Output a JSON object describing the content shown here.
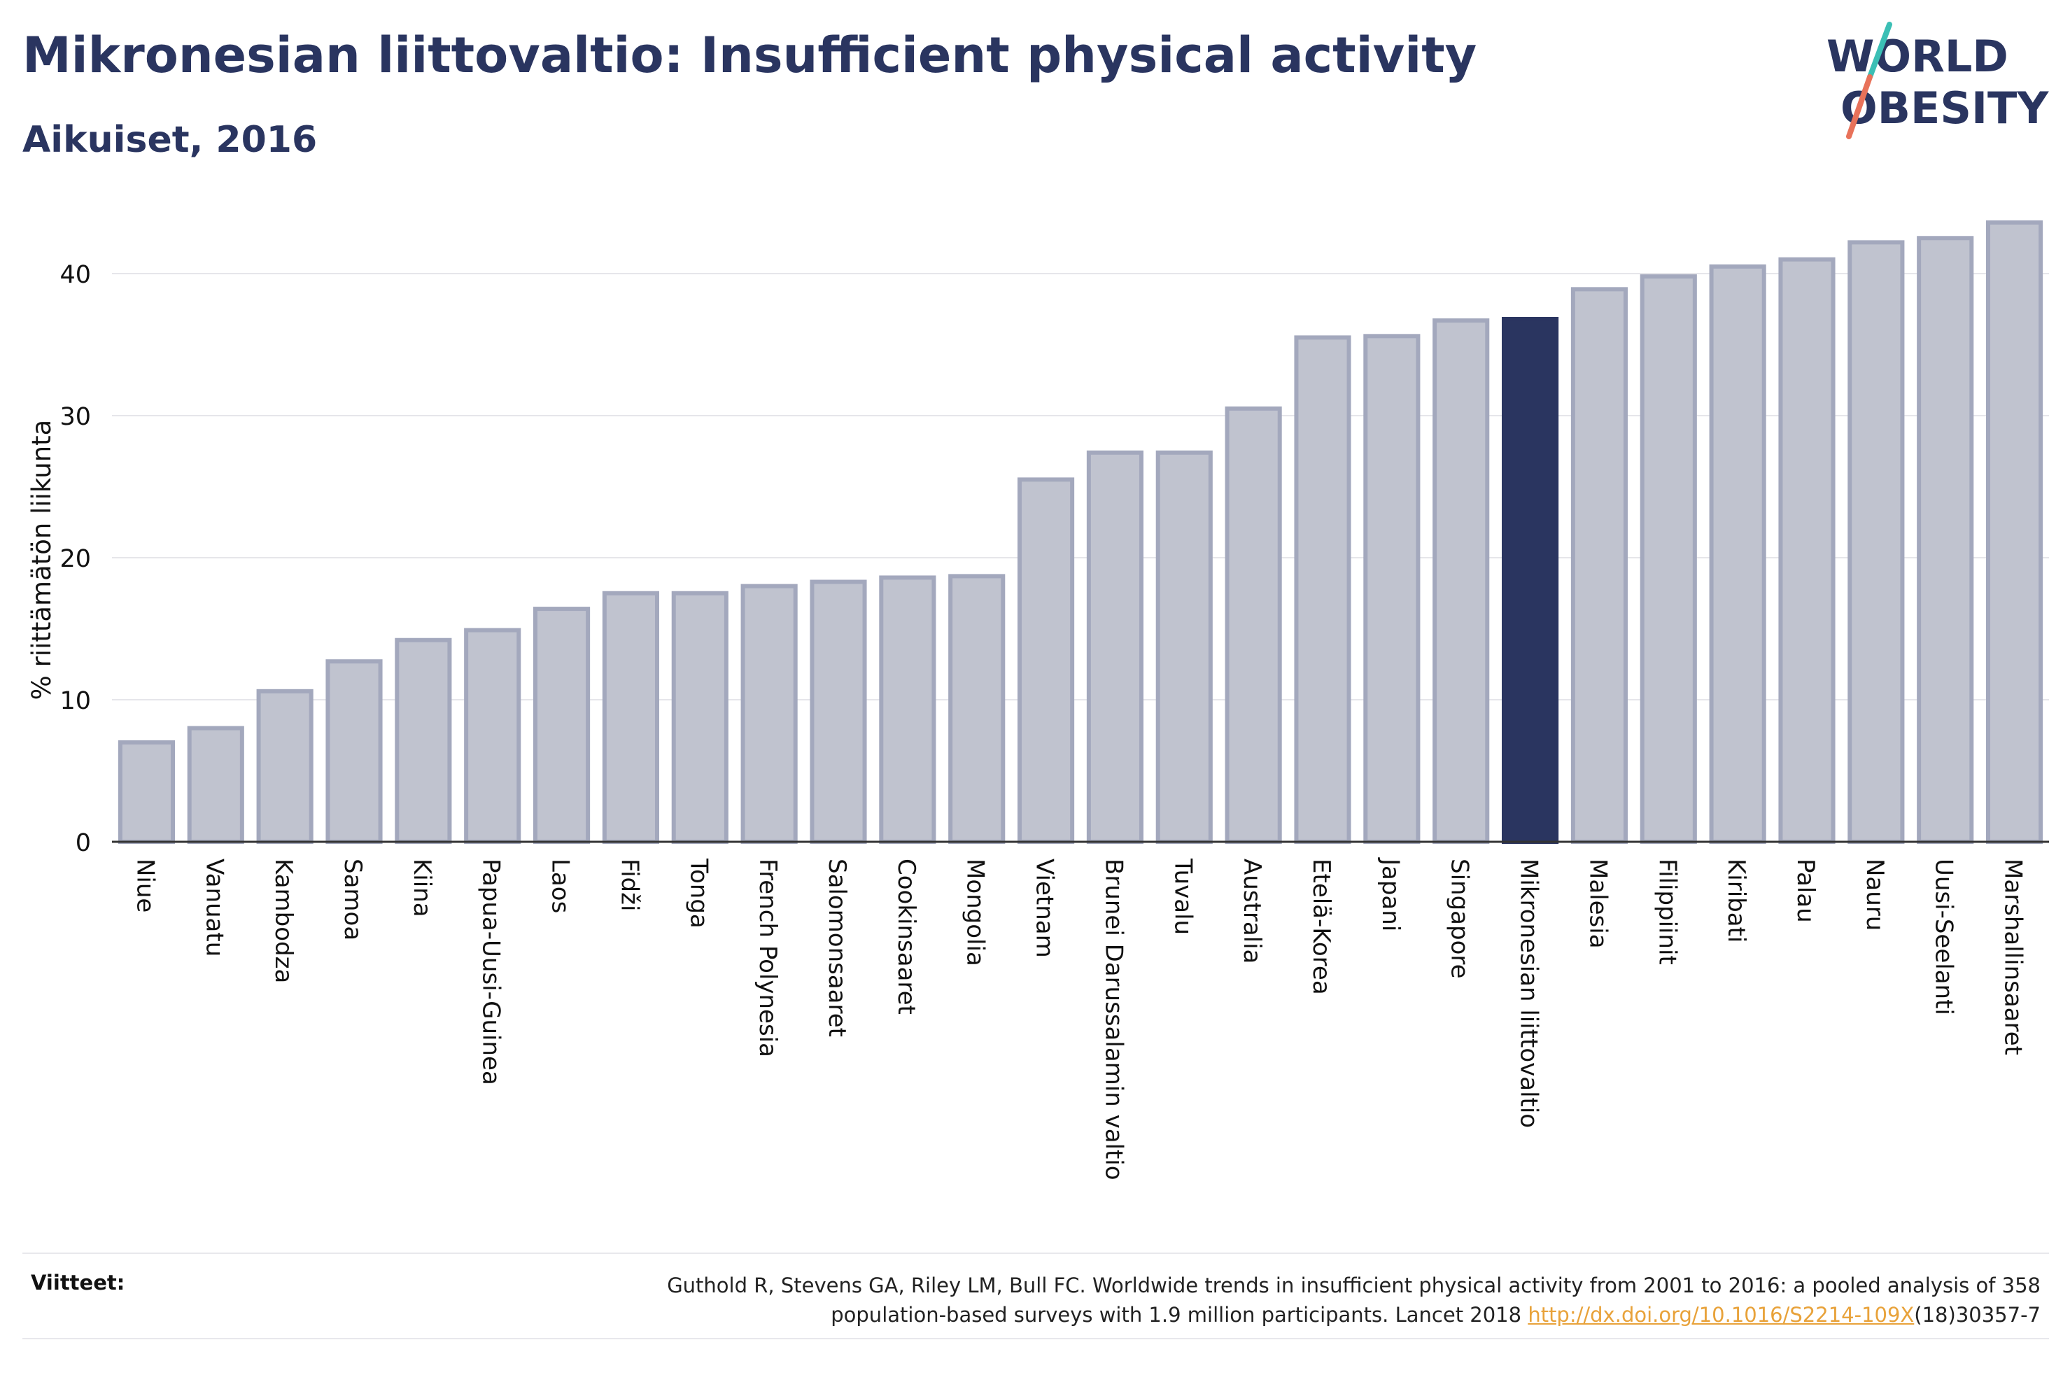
{
  "header": {
    "title": "Mikronesian liittovaltio: Insufficient physical activity",
    "subtitle": "Aikuiset, 2016"
  },
  "logo": {
    "line1": "WORLD",
    "line2": "OBESITY",
    "text_color": "#2a3560",
    "slash_colors": [
      "#3bbfb5",
      "#e8725a"
    ]
  },
  "chart_data": {
    "type": "bar",
    "title": "Mikronesian liittovaltio: Insufficient physical activity",
    "subtitle": "Aikuiset, 2016",
    "xlabel": "",
    "ylabel": "% riittämätön liikunta",
    "ylim": [
      0,
      44
    ],
    "yticks": [
      0,
      10,
      20,
      30,
      40
    ],
    "grid": true,
    "categories": [
      "Niue",
      "Vanuatu",
      "Kambodza",
      "Samoa",
      "Kiina",
      "Papua-Uusi-Guinea",
      "Laos",
      "Fidži",
      "Tonga",
      "French Polynesia",
      "Salomonsaaret",
      "Cookinsaaret",
      "Mongolia",
      "Vietnam",
      "Brunei Darussalamin valtio",
      "Tuvalu",
      "Australia",
      "Etelä-Korea",
      "Japani",
      "Singapore",
      "Mikronesian liittovaltio",
      "Malesia",
      "Filippiinit",
      "Kiribati",
      "Palau",
      "Nauru",
      "Uusi-Seelanti",
      "Marshallinsaaret"
    ],
    "values": [
      7.0,
      8.0,
      10.6,
      12.7,
      14.2,
      14.9,
      16.4,
      17.5,
      17.5,
      18.0,
      18.3,
      18.6,
      18.7,
      25.5,
      27.4,
      27.4,
      30.5,
      35.5,
      35.6,
      36.7,
      36.8,
      38.9,
      39.8,
      40.5,
      41.0,
      42.2,
      42.5,
      43.6
    ],
    "highlight": "Mikronesian liittovaltio",
    "colors": {
      "bar_fill": "#c0c3cf",
      "bar_stroke": "#a3a8bd",
      "highlight": "#2a3560",
      "grid": "#e6e6ea",
      "axis": "#333333"
    }
  },
  "footer": {
    "label": "Viitteet:",
    "reference_line1": "Guthold R, Stevens GA, Riley LM, Bull FC. Worldwide trends in insufficient physical activity from 2001 to 2016: a pooled analysis of 358",
    "reference_line2_prefix": "population-based surveys with 1.9 million participants. Lancet 2018 ",
    "reference_link": "http://dx.doi.org/10.1016/S2214-109X",
    "reference_line2_suffix": "(18)30357-7"
  }
}
